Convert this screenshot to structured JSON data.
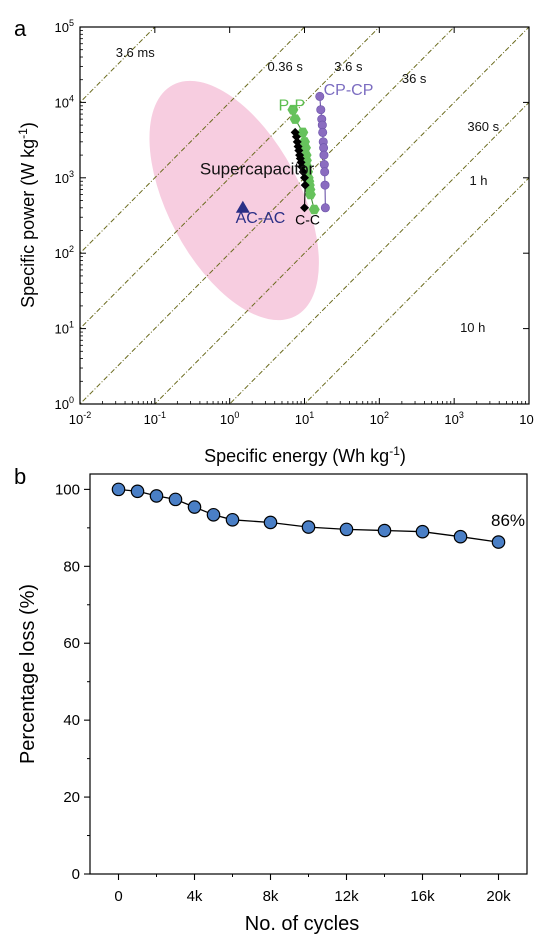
{
  "chart_data": [
    {
      "panel_label": "a",
      "type": "scatter",
      "xlabel": "Specific energy (Wh kg",
      "xlabel_sup": "-1",
      "xlabel_tail": ")",
      "ylabel": "Specific power (W kg",
      "ylabel_sup": "-1",
      "ylabel_tail": ")",
      "xscale": "log",
      "yscale": "log",
      "xlim": [
        0.01,
        10000
      ],
      "ylim": [
        1,
        100000
      ],
      "x_ticks": [
        {
          "value": 0.01,
          "base": "10",
          "exp": "-2"
        },
        {
          "value": 0.1,
          "base": "10",
          "exp": "-1"
        },
        {
          "value": 1,
          "base": "10",
          "exp": "0"
        },
        {
          "value": 10,
          "base": "10",
          "exp": "1"
        },
        {
          "value": 100,
          "base": "10",
          "exp": "2"
        },
        {
          "value": 1000,
          "base": "10",
          "exp": "3"
        },
        {
          "value": 10000,
          "base": "10",
          "exp": "4"
        }
      ],
      "y_ticks": [
        {
          "value": 1,
          "base": "10",
          "exp": "0"
        },
        {
          "value": 10,
          "base": "10",
          "exp": "1"
        },
        {
          "value": 100,
          "base": "10",
          "exp": "2"
        },
        {
          "value": 1000,
          "base": "10",
          "exp": "3"
        },
        {
          "value": 10000,
          "base": "10",
          "exp": "4"
        },
        {
          "value": 100000,
          "base": "10",
          "exp": "5"
        }
      ],
      "time_lines": [
        {
          "label": "3.6 ms",
          "seconds": 0.0036,
          "label_at": [
            0.03,
            40000
          ]
        },
        {
          "label": "0.36 s",
          "seconds": 0.36,
          "label_at": [
            3.2,
            26000
          ]
        },
        {
          "label": "3.6 s",
          "seconds": 3.6,
          "label_at": [
            25,
            26000
          ]
        },
        {
          "label": "36 s",
          "seconds": 36,
          "label_at": [
            200,
            18000
          ]
        },
        {
          "label": "360 s",
          "seconds": 360,
          "label_at": [
            1500,
            4200
          ]
        },
        {
          "label": "1 h",
          "seconds": 3600,
          "label_at": [
            1600,
            800
          ]
        },
        {
          "label": "10 h",
          "seconds": 36000,
          "label_at": [
            1200,
            9
          ]
        }
      ],
      "region": {
        "label": "Supercapacitor",
        "label_at": [
          0.4,
          1100
        ],
        "color": "#f7cde0"
      },
      "series": [
        {
          "name": "P-P",
          "marker": "hexagon",
          "color": "#66c25c",
          "label_color": "#5cbf4f",
          "label_at": [
            4.5,
            7800
          ],
          "x": [
            7.0,
            7.5,
            9.5,
            10.0,
            10.3,
            10.5,
            10.6,
            10.8,
            11.0,
            11.2,
            11.4,
            11.6,
            11.8,
            12.0,
            13.5
          ],
          "y": [
            8000,
            6000,
            4000,
            3000,
            2500,
            2000,
            1700,
            1400,
            1200,
            1000,
            900,
            800,
            700,
            600,
            380
          ]
        },
        {
          "name": "CP-CP",
          "marker": "circle",
          "color": "#8a6cc0",
          "label_color": "#7b6cc0",
          "label_at": [
            18,
            12500
          ],
          "x": [
            16.0,
            16.5,
            17.0,
            17.3,
            17.5,
            17.8,
            18.0,
            18.2,
            18.4,
            18.6,
            18.8,
            19.0
          ],
          "y": [
            12000,
            8000,
            6000,
            5000,
            4000,
            3000,
            2500,
            2000,
            1500,
            1200,
            800,
            400
          ]
        },
        {
          "name": "C-C",
          "marker": "diamond",
          "color": "#000000",
          "label_color": "#000000",
          "label_at": [
            7.5,
            240
          ],
          "x": [
            7.5,
            7.8,
            8.0,
            8.2,
            8.4,
            8.6,
            8.8,
            9.0,
            9.2,
            9.6,
            10.0,
            10.2,
            10.0
          ],
          "y": [
            4000,
            3500,
            3000,
            2600,
            2300,
            2000,
            1800,
            1600,
            1400,
            1200,
            1000,
            800,
            400
          ]
        },
        {
          "name": "AC-AC",
          "marker": "triangle",
          "color": "#2b2f86",
          "label_color": "#2b2f86",
          "label_at": [
            1.2,
            250
          ],
          "x": [
            1.5
          ],
          "y": [
            400
          ]
        }
      ]
    },
    {
      "panel_label": "b",
      "type": "line",
      "xlabel": "No. of cycles",
      "ylabel": "Percentage loss (%)",
      "xlim": [
        -1500,
        21500
      ],
      "ylim": [
        0,
        104
      ],
      "x_ticks": [
        {
          "value": 0,
          "label": "0"
        },
        {
          "value": 4000,
          "label": "4k"
        },
        {
          "value": 8000,
          "label": "8k"
        },
        {
          "value": 12000,
          "label": "12k"
        },
        {
          "value": 16000,
          "label": "16k"
        },
        {
          "value": 20000,
          "label": "20k"
        }
      ],
      "y_ticks": [
        {
          "value": 0,
          "label": "0"
        },
        {
          "value": 20,
          "label": "20"
        },
        {
          "value": 40,
          "label": "40"
        },
        {
          "value": 60,
          "label": "60"
        },
        {
          "value": 80,
          "label": "80"
        },
        {
          "value": 100,
          "label": "100"
        }
      ],
      "series": [
        {
          "marker_color": "#4a7fc6",
          "x": [
            0,
            1000,
            2000,
            3000,
            4000,
            5000,
            6000,
            8000,
            10000,
            12000,
            14000,
            16000,
            18000,
            20000
          ],
          "y": [
            100,
            99.5,
            98.3,
            97.4,
            95.4,
            93.4,
            92.1,
            91.4,
            90.2,
            89.6,
            89.3,
            89.0,
            87.7,
            86.3
          ]
        }
      ],
      "annotation": {
        "text": "86%",
        "at": [
          20500,
          90.5
        ]
      }
    }
  ]
}
